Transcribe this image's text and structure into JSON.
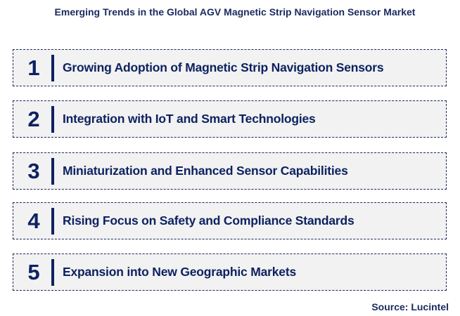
{
  "title": "Emerging Trends in the Global AGV Magnetic Strip Navigation Sensor Market",
  "colors": {
    "primary": "#0d2260",
    "box_bg": "#f2f2f2"
  },
  "trends": [
    {
      "number": "1",
      "label": "Growing Adoption of Magnetic Strip Navigation Sensors"
    },
    {
      "number": "2",
      "label": "Integration with IoT and Smart Technologies"
    },
    {
      "number": "3",
      "label": "Miniaturization and Enhanced Sensor Capabilities"
    },
    {
      "number": "4",
      "label": "Rising Focus on Safety and Compliance Standards"
    },
    {
      "number": "5",
      "label": "Expansion into New Geographic Markets"
    }
  ],
  "source": "Source: Lucintel"
}
